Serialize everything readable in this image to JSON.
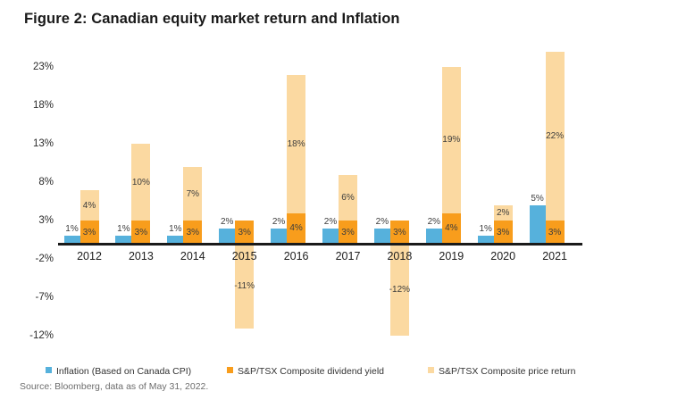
{
  "title": "Figure 2: Canadian equity market return and Inflation",
  "source_note": "Source: Bloomberg, data as of May 31, 2022.",
  "colors": {
    "inflation_blue": "#56b1dc",
    "dividend_orange": "#f89d1c",
    "price_light_orange": "#fbd9a1",
    "axis_black": "#1a1a1a",
    "label_dark": "#3d3d3d"
  },
  "chart_data": {
    "type": "bar",
    "title": "Figure 2: Canadian equity market return and Inflation",
    "categories": [
      "2012",
      "2013",
      "2014",
      "2015",
      "2016",
      "2017",
      "2018",
      "2019",
      "2020",
      "2021"
    ],
    "series": [
      {
        "name": "Inflation (Based on Canada CPI)",
        "color": "#56b1dc",
        "style": "separate bar",
        "values": [
          1,
          1,
          1,
          2,
          2,
          2,
          2,
          2,
          1,
          5
        ],
        "labels": [
          "1%",
          "1%",
          "1%",
          "2%",
          "2%",
          "2%",
          "2%",
          "2%",
          "1%",
          "5%"
        ]
      },
      {
        "name": "S&P/TSX Composite dividend yield",
        "color": "#f89d1c",
        "style": "stacked base",
        "values": [
          3,
          3,
          3,
          3,
          4,
          3,
          3,
          4,
          3,
          3
        ],
        "labels": [
          "3%",
          "3%",
          "3%",
          "3%",
          "4%",
          "3%",
          "3%",
          "4%",
          "3%",
          "3%"
        ]
      },
      {
        "name": "S&P/TSX Composite price return",
        "color": "#fbd9a1",
        "style": "stacked on dividend when positive, below zero when negative",
        "values": [
          4,
          10,
          7,
          -11,
          18,
          6,
          -12,
          19,
          2,
          22
        ],
        "labels": [
          "4%",
          "10%",
          "7%",
          "-11%",
          "18%",
          "6%",
          "-12%",
          "19%",
          "2%",
          "22%"
        ]
      }
    ],
    "yticks": [
      23,
      18,
      13,
      8,
      3,
      -2,
      -7,
      -12
    ],
    "ytick_labels": [
      "23%",
      "18%",
      "13%",
      "8%",
      "3%",
      "-2%",
      "-7%",
      "-12%"
    ],
    "ylim": [
      -13,
      26
    ],
    "value_suffix": "%",
    "grid": false,
    "legend_position": "bottom"
  }
}
